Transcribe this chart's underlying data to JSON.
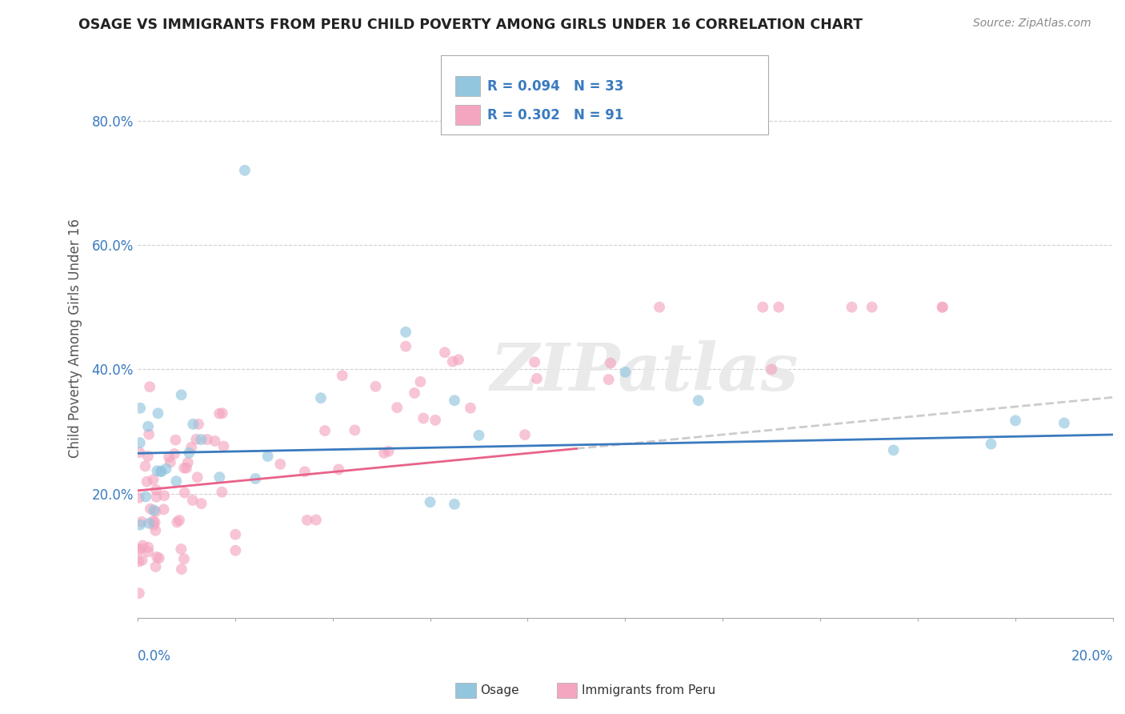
{
  "title": "OSAGE VS IMMIGRANTS FROM PERU CHILD POVERTY AMONG GIRLS UNDER 16 CORRELATION CHART",
  "source": "Source: ZipAtlas.com",
  "ylabel": "Child Poverty Among Girls Under 16",
  "series1_name": "Osage",
  "series2_name": "Immigrants from Peru",
  "series1_color": "#92c5de",
  "series2_color": "#f4a6c0",
  "series1_line_color": "#3a7abf",
  "series2_line_color": "#e8628a",
  "watermark": "ZIPatlas",
  "xlim": [
    0.0,
    0.2
  ],
  "ylim": [
    0.0,
    0.9
  ],
  "yticks": [
    0.0,
    0.2,
    0.4,
    0.6,
    0.8
  ],
  "ytick_labels": [
    "",
    "20.0%",
    "40.0%",
    "60.0%",
    "80.0%"
  ],
  "legend_r1": "R = 0.094",
  "legend_n1": "N = 33",
  "legend_r2": "R = 0.302",
  "legend_n2": "N = 91"
}
